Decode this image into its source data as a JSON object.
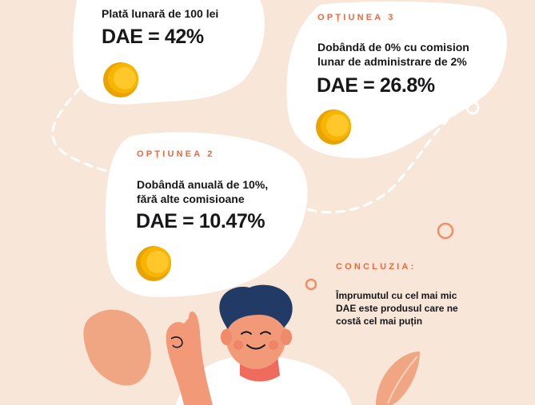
{
  "option1": {
    "description": "Plată lunară de 100 lei",
    "dae": "DAE = 42%"
  },
  "option2": {
    "label": "OPȚIUNEA 2",
    "description_line1": "Dobândă anuală de 10%,",
    "description_line2": "fără alte comisioane",
    "dae": "DAE = 10.47%"
  },
  "option3": {
    "label": "OPȚIUNEA 3",
    "description_line1": "Dobândă de 0% cu comision",
    "description_line2": "lunar de administrare de 2%",
    "dae": "DAE = 26.8%"
  },
  "conclusion": {
    "label": "CONCLUZIA:",
    "line1": "Împrumutul cu cel mai mic",
    "line2": "DAE este produsul care ne",
    "line3": "costă cel mai puțin"
  },
  "colors": {
    "background": "#f8e6d8",
    "bubble": "#ffffff",
    "accent": "#e86a3e",
    "coin": "#f7b500",
    "hair": "#213a66",
    "skin": "#f29a78"
  }
}
